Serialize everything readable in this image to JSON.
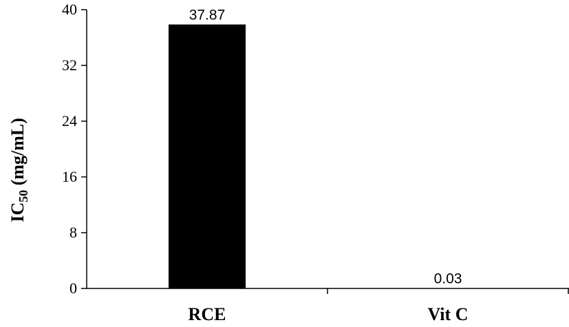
{
  "chart_data": {
    "type": "bar",
    "categories": [
      "RCE",
      "Vit C"
    ],
    "values": [
      37.87,
      0.03
    ],
    "data_labels": [
      "37.87",
      "0.03"
    ],
    "ylabel": {
      "main": "IC",
      "subscript": "50",
      "suffix": " (mg/mL)"
    },
    "ylim": [
      0,
      40
    ],
    "yticks": [
      0,
      8,
      16,
      24,
      32,
      40
    ],
    "bar_color": "#000000",
    "grid": false,
    "legend": "none"
  }
}
